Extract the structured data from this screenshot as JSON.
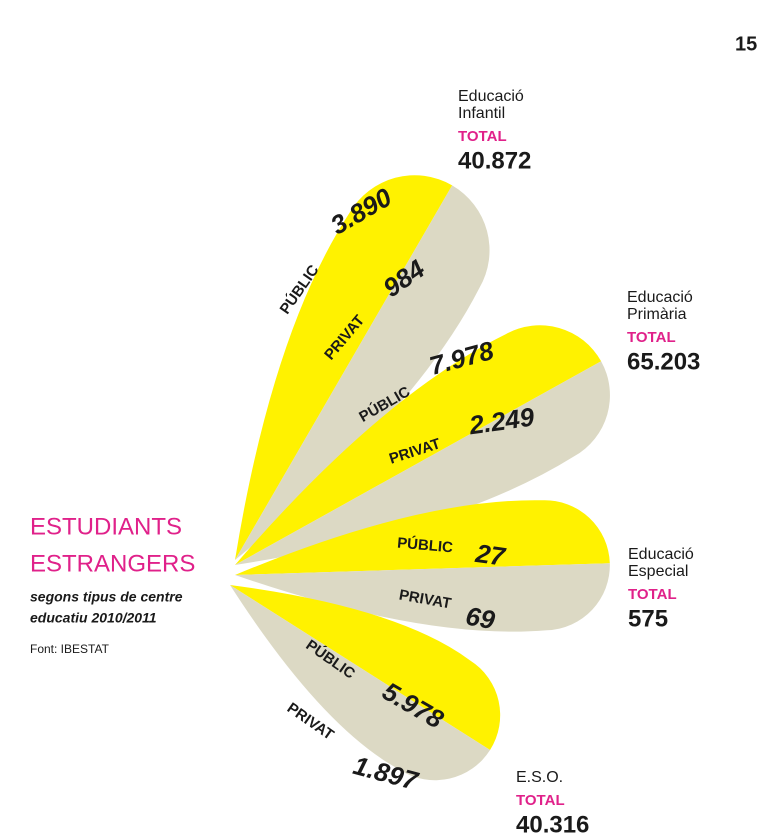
{
  "page_number": "15",
  "title_lines": [
    "ESTUDIANTS",
    "ESTRANGERS"
  ],
  "subtitle_lines": [
    "segons tipus de centre",
    "educatiu 2010/2011"
  ],
  "source": "Font: IBESTAT",
  "groups": [
    {
      "name_lines": [
        "Educació",
        "Infantil"
      ],
      "total_label": "TOTAL",
      "total": "40.872",
      "public_label": "PÚBLIC",
      "public": "3.890",
      "private_label": "PRIVAT",
      "private": "984"
    },
    {
      "name_lines": [
        "Educació",
        "Primària"
      ],
      "total_label": "TOTAL",
      "total": "65.203",
      "public_label": "PÚBLIC",
      "public": "7.978",
      "private_label": "PRIVAT",
      "private": "2.249"
    },
    {
      "name_lines": [
        "Educació",
        "Especial"
      ],
      "total_label": "TOTAL",
      "total": "575",
      "public_label": "PÚBLIC",
      "public": "27",
      "private_label": "PRIVAT",
      "private": "69"
    },
    {
      "name_lines": [
        "E.S.O."
      ],
      "total_label": "TOTAL",
      "total": "40.316",
      "public_label": "PÚBLIC",
      "public": "5.978",
      "private_label": "PRIVAT",
      "private": "1.897"
    }
  ]
}
